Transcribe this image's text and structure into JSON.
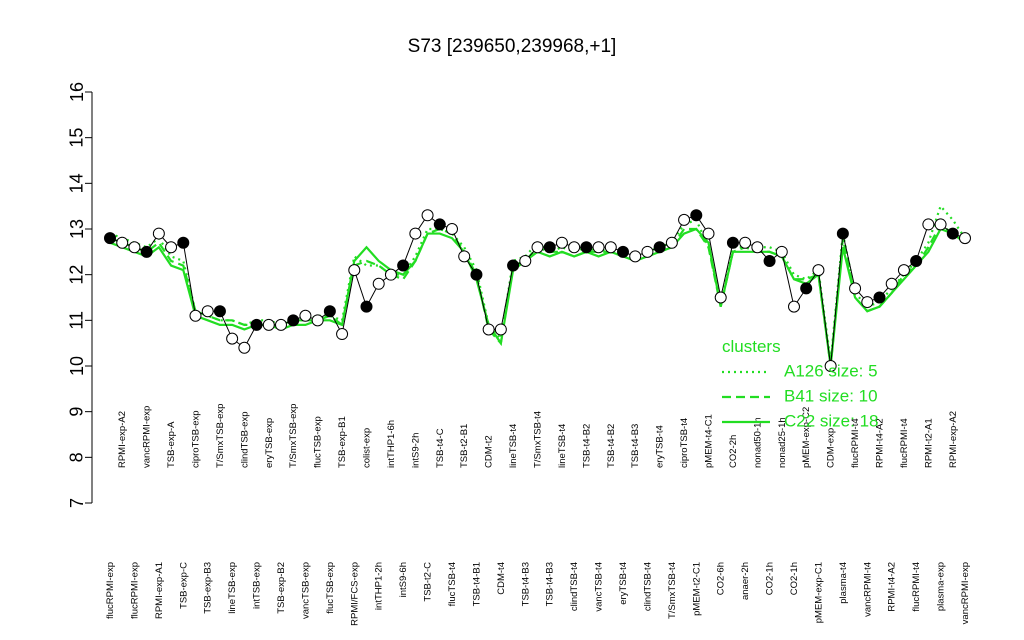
{
  "chart_data": {
    "type": "line",
    "title": "S73 [239650,239968,+1]",
    "categories": [
      "flucRPMI-exp",
      "RPMI-exp-A2",
      "flucRPMI-exp",
      "vancRPMI-exp",
      "RPMI-exp-A1",
      "TSB-exp-A",
      "TSB-exp-C",
      "ciproTSB-exp",
      "TSB-exp-B3",
      "T/SmxTSB-exp",
      "lineTSB-exp",
      "clindTSB-exp",
      "intTSB-exp",
      "eryTSB-exp",
      "TSB-exp-B2",
      "T/SmxTSB-exp",
      "vancTSB-exp",
      "flucTSB-exp",
      "flucTSB-exp",
      "TSB-exp-B1",
      "RPMI/FCS-exp",
      "colist-exp",
      "intTHP1-2h",
      "intTHP1-6h",
      "intS9-6h",
      "intS9-2h",
      "TSB-t2-C",
      "TSB-t4-C",
      "flucTSB-t4",
      "TSB-t2-B1",
      "TSB-t4-B1",
      "CDM-t2",
      "CDM-t4",
      "lineTSB-t4",
      "TSB-t4-B3",
      "T/SmxTSB-t4",
      "TSB-t4-B3",
      "lineTSB-t4",
      "clindTSB-t4",
      "TSB-t4-B2",
      "vancTSB-t4",
      "TSB-t4-B2",
      "eryTSB-t4",
      "TSB-t4-B3",
      "clindTSB-t4",
      "eryTSB-t4",
      "T/SmxTSB-t4",
      "ciproTSB-t4",
      "pMEM-t2-C1",
      "pMEM-t4-C1",
      "CO2-6h",
      "CO2-2h",
      "anaer-2h",
      "nonad50-1h",
      "CO2-1h",
      "nonad25-1h",
      "CO2-1h",
      "pMEM-exp-C2",
      "pMEM-exp-C1",
      "CDM-exp",
      "plasma-t4",
      "flucRPMI-t4",
      "vancRPMI-t4",
      "RPMI-t4-A2",
      "RPMI-t4-A2",
      "flucRPMI-t4",
      "flucRPMI-t4",
      "RPMI-t2-A1",
      "plasma-exp",
      "RPMI-exp-A2",
      "vancRPMI-exp"
    ],
    "values": [
      12.8,
      12.7,
      12.6,
      12.5,
      12.9,
      12.6,
      12.7,
      11.1,
      11.2,
      11.2,
      10.6,
      10.4,
      10.9,
      10.9,
      10.9,
      11.0,
      11.1,
      11.0,
      11.2,
      10.7,
      12.1,
      11.3,
      11.8,
      12.0,
      12.2,
      12.9,
      13.3,
      13.1,
      13.0,
      12.4,
      12.0,
      10.8,
      10.8,
      12.2,
      12.3,
      12.6,
      12.6,
      12.7,
      12.6,
      12.6,
      12.6,
      12.6,
      12.5,
      12.4,
      12.5,
      12.6,
      12.7,
      13.2,
      13.3,
      12.9,
      11.5,
      12.7,
      12.7,
      12.6,
      12.3,
      12.5,
      11.3,
      11.7,
      12.1,
      10.0,
      12.9,
      11.7,
      11.4,
      11.5,
      11.8,
      12.1,
      12.3,
      13.1,
      13.1,
      12.9,
      12.8
    ],
    "color": "#000000",
    "legend_title": "clusters",
    "series": [
      {
        "name": "A126 size: 5",
        "color": "#22dd22",
        "style": "dotted",
        "values": [
          12.9,
          12.8,
          12.7,
          12.6,
          12.8,
          12.4,
          12.3,
          11.2,
          11.1,
          11.0,
          11.0,
          10.9,
          11.0,
          11.0,
          10.9,
          11.0,
          11.0,
          11.1,
          11.1,
          11.0,
          12.4,
          12.2,
          12.2,
          12.0,
          12.0,
          12.4,
          13.0,
          13.0,
          12.9,
          12.6,
          12.1,
          10.9,
          10.6,
          12.3,
          12.4,
          12.7,
          12.5,
          12.6,
          12.5,
          12.6,
          12.5,
          12.6,
          12.5,
          12.4,
          12.5,
          12.6,
          12.7,
          13.1,
          13.2,
          12.6,
          11.4,
          12.6,
          12.6,
          12.6,
          12.6,
          12.5,
          12.0,
          11.9,
          12.1,
          10.1,
          12.9,
          11.6,
          11.3,
          11.4,
          11.7,
          12.0,
          12.3,
          12.7,
          13.5,
          13.2,
          12.8
        ]
      },
      {
        "name": "B41 size: 10",
        "color": "#22dd22",
        "style": "dashed",
        "values": [
          12.8,
          12.7,
          12.6,
          12.5,
          12.7,
          12.3,
          12.2,
          11.2,
          11.1,
          11.0,
          11.0,
          10.9,
          10.9,
          10.9,
          10.9,
          11.0,
          11.0,
          11.0,
          11.1,
          10.9,
          12.2,
          12.3,
          12.2,
          12.0,
          11.9,
          12.3,
          12.9,
          13.0,
          12.9,
          12.5,
          12.0,
          10.8,
          10.5,
          12.2,
          12.3,
          12.6,
          12.5,
          12.5,
          12.4,
          12.5,
          12.5,
          12.5,
          12.4,
          12.4,
          12.4,
          12.5,
          12.6,
          13.0,
          13.0,
          12.6,
          11.3,
          12.5,
          12.6,
          12.5,
          12.5,
          12.4,
          11.9,
          11.9,
          12.0,
          10.0,
          12.8,
          11.5,
          11.2,
          11.3,
          11.6,
          12.0,
          12.2,
          12.6,
          13.1,
          12.9,
          12.7
        ]
      },
      {
        "name": "C22 size: 18",
        "color": "#22dd22",
        "style": "solid",
        "values": [
          12.7,
          12.6,
          12.5,
          12.4,
          12.6,
          12.2,
          12.1,
          11.1,
          11.0,
          10.9,
          10.9,
          10.8,
          10.9,
          10.9,
          10.8,
          10.9,
          10.9,
          11.0,
          11.0,
          10.9,
          12.3,
          12.6,
          12.3,
          12.1,
          12.0,
          12.3,
          12.9,
          12.9,
          12.8,
          12.5,
          11.9,
          10.9,
          10.5,
          12.1,
          12.3,
          12.5,
          12.4,
          12.5,
          12.4,
          12.5,
          12.4,
          12.5,
          12.4,
          12.3,
          12.4,
          12.5,
          12.6,
          12.9,
          13.0,
          12.7,
          11.3,
          12.5,
          12.5,
          12.5,
          12.5,
          12.4,
          11.9,
          11.8,
          12.0,
          10.0,
          12.6,
          11.5,
          11.2,
          11.3,
          11.6,
          11.9,
          12.2,
          12.5,
          13.0,
          12.9,
          12.7
        ]
      }
    ],
    "ylim": [
      7,
      16
    ],
    "yticks": [
      7,
      8,
      9,
      10,
      11,
      12,
      13,
      14,
      15,
      16
    ]
  }
}
